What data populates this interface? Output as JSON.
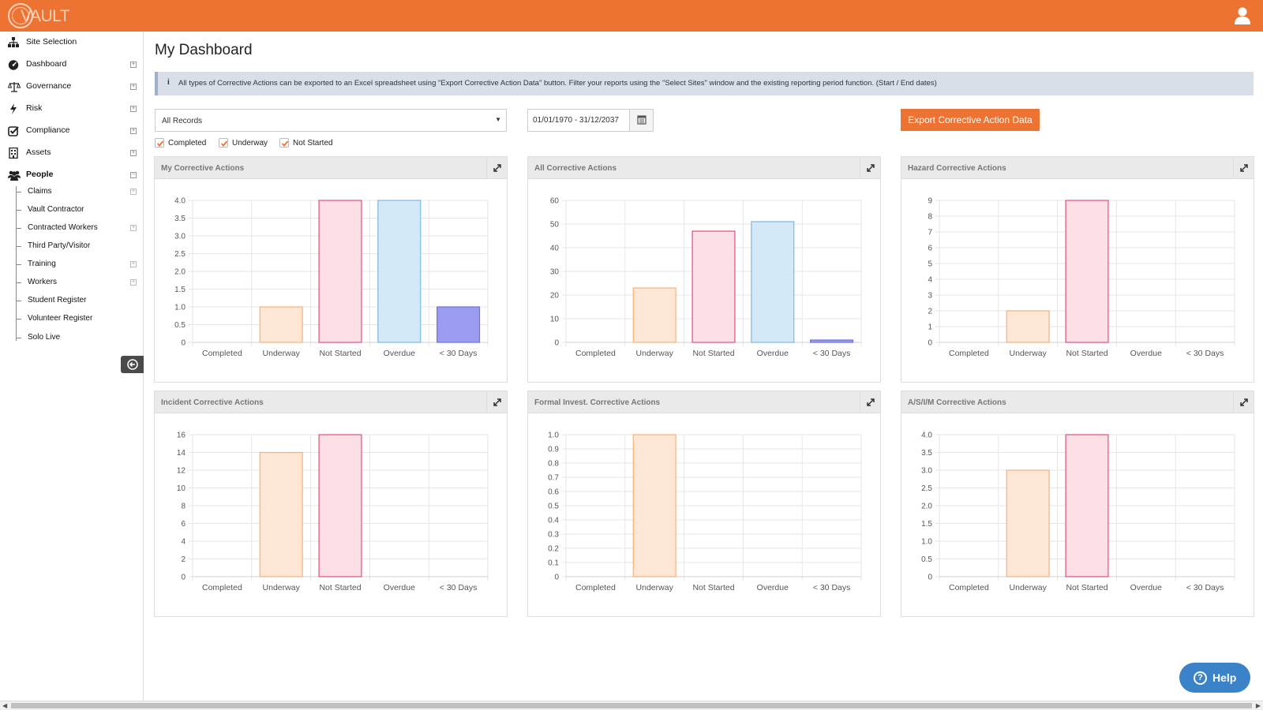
{
  "app": {
    "logo_text": "VAULT",
    "accent": "#ec7332"
  },
  "sidebar": {
    "items": [
      {
        "label": "Site Selection",
        "icon": "sitemap-icon",
        "expandable": false
      },
      {
        "label": "Dashboard",
        "icon": "dashboard-icon",
        "expandable": true
      },
      {
        "label": "Governance",
        "icon": "balance-scale-icon",
        "expandable": true
      },
      {
        "label": "Risk",
        "icon": "bolt-icon",
        "expandable": true
      },
      {
        "label": "Compliance",
        "icon": "checkbox-icon",
        "expandable": true
      },
      {
        "label": "Assets",
        "icon": "building-icon",
        "expandable": true
      },
      {
        "label": "People",
        "icon": "users-icon",
        "expandable": true,
        "expanded": true
      }
    ],
    "people_children": [
      {
        "label": "Claims",
        "expandable": true
      },
      {
        "label": "Vault Contractor",
        "expandable": false
      },
      {
        "label": "Contracted Workers",
        "expandable": true
      },
      {
        "label": "Third Party/Visitor",
        "expandable": false
      },
      {
        "label": "Training",
        "expandable": true
      },
      {
        "label": "Workers",
        "expandable": true
      },
      {
        "label": "Student Register",
        "expandable": false
      },
      {
        "label": "Volunteer Register",
        "expandable": false
      },
      {
        "label": "Solo Live",
        "expandable": false
      }
    ]
  },
  "main": {
    "title": "My Dashboard",
    "info_icon": "i",
    "info_text": "All types of Corrective Actions can be exported to an Excel spreadsheet using \"Export Corrective Action Data\" button. Filter your reports using the \"Select Sites\" window and the existing reporting period function. (Start / End dates)",
    "records_select": "All Records",
    "date_range": "01/01/1970 - 31/12/2037",
    "export_label": "Export Corrective Action Data",
    "filters": [
      {
        "label": "Completed",
        "checked": true
      },
      {
        "label": "Underway",
        "checked": true
      },
      {
        "label": "Not Started",
        "checked": true
      }
    ]
  },
  "status_colors": {
    "Completed": {
      "fill": "#d9eef3",
      "stroke": "#8fc9d6"
    },
    "Underway": {
      "fill": "#fde6d3",
      "stroke": "#f5b17d"
    },
    "Not Started": {
      "fill": "#fde0e6",
      "stroke": "#e0507a"
    },
    "Overdue": {
      "fill": "#d4e9f8",
      "stroke": "#7bb7e3"
    },
    "< 30 Days": {
      "fill": "#9b9cf0",
      "stroke": "#6f70d8"
    }
  },
  "chart_data": [
    {
      "type": "bar",
      "title": "My Corrective Actions",
      "categories": [
        "Completed",
        "Underway",
        "Not Started",
        "Overdue",
        "< 30 Days"
      ],
      "values": [
        0,
        1,
        4,
        4,
        1
      ],
      "ylim": [
        0,
        4
      ],
      "yticks": [
        "0",
        "0.5",
        "1.0",
        "1.5",
        "2.0",
        "2.5",
        "3.0",
        "3.5",
        "4.0"
      ],
      "grid": true
    },
    {
      "type": "bar",
      "title": "All Corrective Actions",
      "categories": [
        "Completed",
        "Underway",
        "Not Started",
        "Overdue",
        "< 30 Days"
      ],
      "values": [
        0,
        23,
        47,
        51,
        1
      ],
      "ylim": [
        0,
        60
      ],
      "yticks": [
        "0",
        "10",
        "20",
        "30",
        "40",
        "50",
        "60"
      ],
      "grid": true
    },
    {
      "type": "bar",
      "title": "Hazard Corrective Actions",
      "categories": [
        "Completed",
        "Underway",
        "Not Started",
        "Overdue",
        "< 30 Days"
      ],
      "values": [
        0,
        2,
        9,
        0,
        0
      ],
      "ylim": [
        0,
        9
      ],
      "yticks": [
        "0",
        "1",
        "2",
        "3",
        "4",
        "5",
        "6",
        "7",
        "8",
        "9"
      ],
      "grid": true
    },
    {
      "type": "bar",
      "title": "Incident Corrective Actions",
      "categories": [
        "Completed",
        "Underway",
        "Not Started",
        "Overdue",
        "< 30 Days"
      ],
      "values": [
        0,
        14,
        16,
        0,
        0
      ],
      "ylim": [
        0,
        16
      ],
      "yticks": [
        "0",
        "2",
        "4",
        "6",
        "8",
        "10",
        "12",
        "14",
        "16"
      ],
      "grid": true
    },
    {
      "type": "bar",
      "title": "Formal Invest. Corrective Actions",
      "categories": [
        "Completed",
        "Underway",
        "Not Started",
        "Overdue",
        "< 30 Days"
      ],
      "values": [
        0,
        1,
        0,
        0,
        0
      ],
      "ylim": [
        0,
        1
      ],
      "yticks": [
        "0",
        "0.1",
        "0.2",
        "0.3",
        "0.4",
        "0.5",
        "0.6",
        "0.7",
        "0.8",
        "0.9",
        "1.0"
      ],
      "grid": true
    },
    {
      "type": "bar",
      "title": "A/S/I/M Corrective Actions",
      "categories": [
        "Completed",
        "Underway",
        "Not Started",
        "Overdue",
        "< 30 Days"
      ],
      "values": [
        0,
        3,
        4,
        0,
        0
      ],
      "ylim": [
        0,
        4
      ],
      "yticks": [
        "0",
        "0.5",
        "1.0",
        "1.5",
        "2.0",
        "2.5",
        "3.0",
        "3.5",
        "4.0"
      ],
      "grid": true
    }
  ],
  "help": {
    "icon": "?",
    "label": "Help"
  }
}
